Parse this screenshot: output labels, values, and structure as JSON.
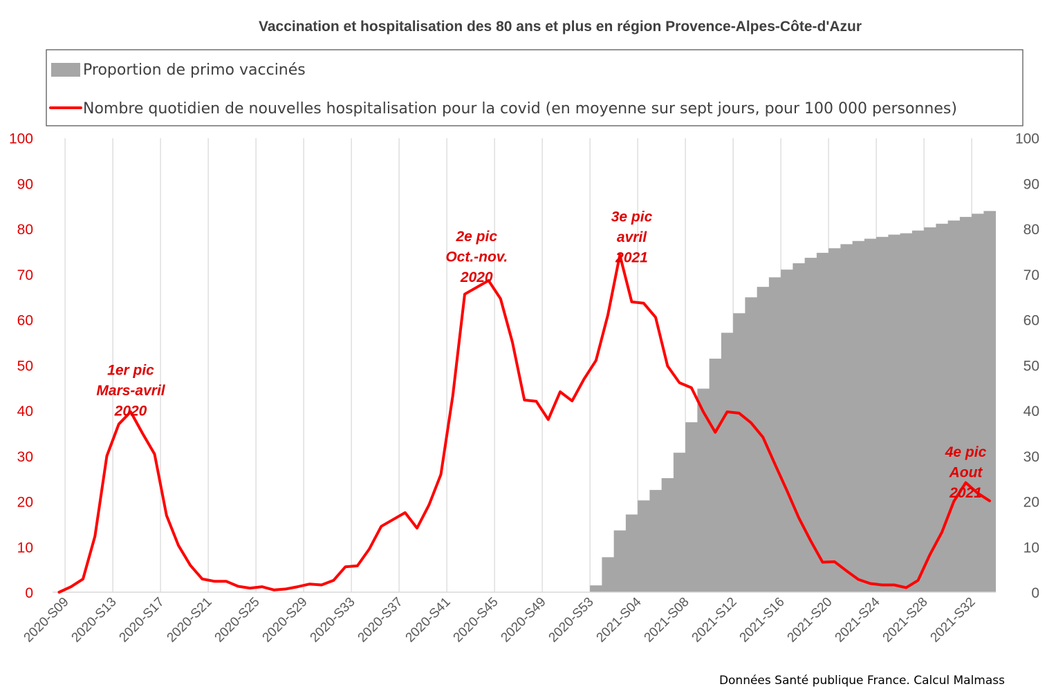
{
  "chart_data": {
    "type": "bar+line",
    "title": "Vaccination et hospitalisation des 80 ans et plus en région Provence-Alpes-Côte-d'Azur",
    "source": "Données Santé publique France. Calcul Malmass",
    "x_tick_labels": [
      "2020-S09",
      "2020-S13",
      "2020-S17",
      "2020-S21",
      "2020-S25",
      "2020-S29",
      "2020-S33",
      "2020-S37",
      "2020-S41",
      "2020-S45",
      "2020-S49",
      "2020-S53",
      "2021-S04",
      "2021-S08",
      "2021-S12",
      "2021-S16",
      "2021-S20",
      "2021-S24",
      "2021-S28",
      "2021-S32"
    ],
    "y_left": {
      "ticks": [
        "0",
        "10",
        "20",
        "30",
        "40",
        "50",
        "60",
        "70",
        "80",
        "90",
        "100"
      ],
      "ylim": [
        0,
        100
      ],
      "color": "#e00000"
    },
    "y_right": {
      "ticks": [
        "0",
        "10",
        "20",
        "30",
        "40",
        "50",
        "60",
        "70",
        "80",
        "90",
        "100"
      ],
      "ylim": [
        0,
        100
      ],
      "color": "#595959"
    },
    "grid": "vertical",
    "legend_position": "top",
    "series": [
      {
        "name": "Proportion de primo vaccinés",
        "type": "bar",
        "axis": "right",
        "color": "#a6a6a6",
        "x": [
          "2021-S01",
          "2021-S02",
          "2021-S03",
          "2021-S04",
          "2021-S05",
          "2021-S06",
          "2021-S07",
          "2021-S08",
          "2021-S09",
          "2021-S10",
          "2021-S11",
          "2021-S12",
          "2021-S13",
          "2021-S14",
          "2021-S15",
          "2021-S16",
          "2021-S17",
          "2021-S18",
          "2021-S19",
          "2021-S20",
          "2021-S21",
          "2021-S22",
          "2021-S23",
          "2021-S24",
          "2021-S25",
          "2021-S26",
          "2021-S27",
          "2021-S28",
          "2021-S29",
          "2021-S30",
          "2021-S31",
          "2021-S32",
          "2021-S33",
          "2021-S34"
        ],
        "values": [
          1.5,
          7.7,
          13.6,
          17.1,
          20.2,
          22.5,
          25.1,
          30.7,
          37.4,
          44.8,
          51.4,
          57.1,
          61.4,
          64.9,
          67.2,
          69.3,
          71.0,
          72.4,
          73.6,
          74.7,
          75.7,
          76.6,
          77.3,
          77.8,
          78.2,
          78.7,
          79.0,
          79.6,
          80.3,
          81.1,
          81.8,
          82.6,
          83.3,
          83.9
        ]
      },
      {
        "name": "Nombre quotidien de nouvelles hospitalisation pour la covid (en moyenne sur sept jours, pour 100 000 personnes)",
        "type": "line",
        "axis": "left",
        "color": "#ff0000",
        "x": [
          "2020-S09",
          "2020-S10",
          "2020-S11",
          "2020-S12",
          "2020-S13",
          "2020-S14",
          "2020-S15",
          "2020-S16",
          "2020-S17",
          "2020-S18",
          "2020-S19",
          "2020-S20",
          "2020-S21",
          "2020-S22",
          "2020-S23",
          "2020-S24",
          "2020-S25",
          "2020-S26",
          "2020-S27",
          "2020-S28",
          "2020-S29",
          "2020-S30",
          "2020-S31",
          "2020-S32",
          "2020-S33",
          "2020-S34",
          "2020-S35",
          "2020-S36",
          "2020-S37",
          "2020-S38",
          "2020-S39",
          "2020-S40",
          "2020-S41",
          "2020-S42",
          "2020-S43",
          "2020-S44",
          "2020-S45",
          "2020-S46",
          "2020-S47",
          "2020-S48",
          "2020-S49",
          "2020-S50",
          "2020-S51",
          "2020-S52",
          "2020-S53",
          "2021-S01",
          "2021-S02",
          "2021-S03",
          "2021-S04",
          "2021-S05",
          "2021-S06",
          "2021-S07",
          "2021-S08",
          "2021-S09",
          "2021-S10",
          "2021-S11",
          "2021-S12",
          "2021-S13",
          "2021-S14",
          "2021-S15",
          "2021-S16",
          "2021-S17",
          "2021-S18",
          "2021-S19",
          "2021-S20",
          "2021-S21",
          "2021-S22",
          "2021-S23",
          "2021-S24",
          "2021-S25",
          "2021-S26",
          "2021-S27",
          "2021-S28",
          "2021-S29",
          "2021-S30",
          "2021-S31",
          "2021-S32",
          "2021-S33",
          "2021-S34"
        ],
        "values": [
          0.0,
          1.2,
          2.9,
          12.3,
          30.0,
          37.0,
          39.7,
          34.9,
          30.4,
          16.9,
          10.3,
          5.9,
          2.9,
          2.4,
          2.4,
          1.3,
          0.9,
          1.2,
          0.5,
          0.7,
          1.2,
          1.8,
          1.6,
          2.6,
          5.6,
          5.8,
          9.5,
          14.5,
          16.0,
          17.5,
          14.1,
          19.2,
          25.9,
          43.3,
          65.6,
          67.1,
          68.6,
          64.6,
          55.0,
          42.3,
          42.0,
          38.0,
          44.1,
          42.1,
          46.9,
          51.0,
          61.0,
          74.2,
          63.9,
          63.6,
          60.5,
          49.8,
          46.1,
          45.0,
          39.7,
          35.2,
          39.7,
          39.4,
          37.3,
          34.1,
          28.2,
          22.4,
          16.4,
          11.3,
          6.6,
          6.7,
          4.7,
          2.8,
          1.9,
          1.6,
          1.6,
          1.0,
          2.6,
          8.3,
          13.2,
          20.0,
          24.1,
          21.8,
          20.1
        ]
      }
    ],
    "annotations": [
      {
        "lines": [
          "1er pic",
          "Mars-avril",
          "2020"
        ],
        "x": "2020-S15",
        "y": 47.8
      },
      {
        "lines": [
          "2e pic",
          "Oct.-nov.",
          "2020"
        ],
        "x": "2020-S44",
        "y": 77.3
      },
      {
        "lines": [
          "3e pic",
          "avril",
          "2021"
        ],
        "x": "2021-S04",
        "y": 81.6
      },
      {
        "lines": [
          "4e pic",
          "Aout",
          "2021"
        ],
        "x": "2021-S32",
        "y": 29.8
      }
    ]
  }
}
